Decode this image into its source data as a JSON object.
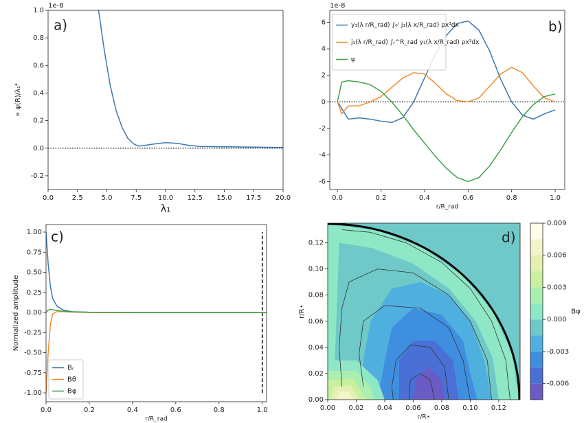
{
  "chart_data": [
    {
      "type": "line",
      "annotation": "a)",
      "offset_text": "1e-8",
      "xlabel": "λ₁",
      "ylabel": "∝ ψ(R)/λ₁⁴",
      "xlim": [
        0,
        20
      ],
      "ylim": [
        -0.3,
        1.0
      ],
      "xticks": [
        {
          "value": 0,
          "label": "0.0"
        },
        2.5,
        {
          "value": 5,
          "label": "5.0"
        },
        7.5,
        {
          "value": 10,
          "label": "10.0"
        },
        12.5,
        {
          "value": 15,
          "label": "15.0"
        },
        17.5,
        {
          "value": 20,
          "label": "20.0"
        }
      ],
      "yticks": [
        -0.2,
        {
          "value": 0,
          "label": "0.0"
        },
        0.2,
        0.4,
        0.6,
        0.8,
        {
          "value": 1,
          "label": "1.0"
        }
      ],
      "hline": 0,
      "x": [
        4.3,
        4.8,
        5.3,
        5.8,
        6.3,
        6.8,
        7.3,
        7.7,
        8.2,
        9,
        10,
        11,
        12,
        13,
        15,
        17,
        20
      ],
      "series": [
        {
          "color": "#3b78b0",
          "values": [
            1.0,
            0.7,
            0.45,
            0.27,
            0.15,
            0.07,
            0.03,
            0.015,
            0.02,
            0.03,
            0.04,
            0.035,
            0.02,
            0.012,
            0.01,
            0.008,
            0.005
          ]
        }
      ]
    },
    {
      "type": "line",
      "annotation": "b)",
      "offset_text": "1e-8",
      "xlabel": "r/R_rad",
      "legend": "upper left",
      "xlim": [
        -0.035,
        1.044
      ],
      "ylim": [
        -6.6,
        6.9
      ],
      "xticks": [
        {
          "value": 0,
          "label": "0.0"
        },
        0.2,
        0.4,
        0.6,
        0.8,
        {
          "value": 1,
          "label": "1.0"
        }
      ],
      "yticks": [
        -6,
        -4,
        -2,
        0,
        2,
        4,
        6
      ],
      "hline": 0,
      "x": [
        0,
        0.02,
        0.05,
        0.1,
        0.15,
        0.2,
        0.25,
        0.3,
        0.35,
        0.4,
        0.45,
        0.5,
        0.55,
        0.6,
        0.65,
        0.7,
        0.75,
        0.8,
        0.85,
        0.9,
        0.95,
        1.0
      ],
      "series": [
        {
          "name": "y₁(λ r/R_rad) ∫₀ʳ j₁(λ x/R_rad) ρx³dx",
          "color": "#3b78b0",
          "values": [
            0,
            -0.5,
            -1.3,
            -1.2,
            -1.3,
            -1.45,
            -1.55,
            -1.2,
            0,
            1.8,
            3.6,
            5.0,
            5.9,
            6.1,
            5.4,
            3.8,
            1.7,
            0,
            -1.0,
            -1.3,
            -0.9,
            -0.6
          ]
        },
        {
          "name": "j₁(λ r/R_rad) ∫ᵣ^R_rad y₁(λ x/R_rad) ρx³dx",
          "color": "#f08a2c",
          "values": [
            0,
            -0.9,
            -0.3,
            -0.3,
            0,
            0.4,
            1.1,
            1.8,
            2.2,
            2.1,
            1.4,
            0.6,
            0.1,
            0,
            0.3,
            1.2,
            2.1,
            2.6,
            2.2,
            1.2,
            0.3,
            0
          ]
        },
        {
          "name": "ψ",
          "color": "#3fa048",
          "values": [
            0,
            1.5,
            1.6,
            1.5,
            1.3,
            0.8,
            0,
            -1.0,
            -2.1,
            -3.1,
            -4.1,
            -5.0,
            -5.7,
            -6.0,
            -5.7,
            -4.8,
            -3.6,
            -2.3,
            -1.1,
            -0.2,
            0.4,
            0.6
          ]
        }
      ]
    },
    {
      "type": "line",
      "annotation": "c)",
      "xlabel": "r/R_rad",
      "ylabel": "Normalized amplitude",
      "legend": "lower left",
      "xlim": [
        0,
        1.02
      ],
      "ylim": [
        -1.11,
        1.094
      ],
      "xticks": [
        {
          "value": 0,
          "label": "0.0"
        },
        0.2,
        0.4,
        0.6,
        0.8,
        {
          "value": 1,
          "label": "1.0"
        }
      ],
      "yticks": [
        {
          "value": -1,
          "label": "-1.00"
        },
        -0.75,
        {
          "value": -0.5,
          "label": "-0.50"
        },
        -0.25,
        {
          "value": 0,
          "label": "0.00"
        },
        0.25,
        {
          "value": 0.5,
          "label": "0.50"
        },
        0.75,
        {
          "value": 1,
          "label": "1.00"
        }
      ],
      "vline": {
        "x": 1.0,
        "ymin": -1,
        "ymax": 1
      },
      "x": [
        0,
        0.01,
        0.02,
        0.03,
        0.05,
        0.08,
        0.12,
        0.2,
        0.4,
        1.02
      ],
      "series": [
        {
          "name": "Bᵣ",
          "color": "#3b78b0",
          "values": [
            1.0,
            0.6,
            0.33,
            0.18,
            0.08,
            0.03,
            0.01,
            0.003,
            0,
            0
          ]
        },
        {
          "name": "Bθ",
          "color": "#f08a2c",
          "values": [
            -1.0,
            -0.5,
            -0.15,
            -0.02,
            0.01,
            0.01,
            0.005,
            0,
            0,
            0
          ]
        },
        {
          "name": "Bφ",
          "color": "#3fa048",
          "values": [
            0,
            0.03,
            0.04,
            0.035,
            0.025,
            0.015,
            0.008,
            0.003,
            0,
            0
          ]
        }
      ]
    },
    {
      "type": "contour",
      "annotation": "d)",
      "xlabel": "r/R⋆",
      "ylabel": "r/R⋆",
      "colorbar_label": "Bφ",
      "xlim": [
        0,
        0.135
      ],
      "ylim": [
        0,
        0.135
      ],
      "xticks": [
        {
          "value": 0,
          "label": "0.00"
        },
        0.02,
        0.04,
        0.06,
        0.08,
        {
          "value": 0.1,
          "label": "0.10"
        },
        0.12
      ],
      "yticks": [
        {
          "value": 0,
          "label": "0.00"
        },
        0.02,
        0.04,
        0.06,
        0.08,
        {
          "value": 0.1,
          "label": "0.10"
        },
        0.12
      ],
      "levels": [
        -0.0075,
        -0.006,
        -0.0045,
        -0.003,
        -0.0015,
        0,
        0.0015,
        0.003,
        0.0045,
        0.006,
        0.0075,
        0.009
      ],
      "colors": [
        "#6a5cc4",
        "#4a70d6",
        "#3f8fe0",
        "#4fb0e0",
        "#6ec9c8",
        "#8ee8c6",
        "#aaeeb0",
        "#c8f0a0",
        "#e4f0b0",
        "#f4f4c8",
        "#fdfde8"
      ],
      "cbar_ticks": [
        -0.006,
        -0.003,
        {
          "value": 0,
          "label": "0.000"
        },
        0.003,
        0.006,
        0.009
      ],
      "boundary_radius": 0.1345,
      "regions": [
        {
          "level": -0.0015,
          "points": [
            [
              0,
              0
            ],
            [
              0.135,
              0
            ],
            [
              0.135,
              0.135
            ],
            [
              0,
              0.135
            ]
          ]
        },
        {
          "level": 0,
          "points": [
            [
              0.134,
              0
            ],
            [
              0.1294,
              0.0347
            ],
            [
              0.116,
              0.067
            ],
            [
              0.0948,
              0.0948
            ],
            [
              0.067,
              0.116
            ],
            [
              0.0347,
              0.1294
            ],
            [
              0,
              0.134
            ],
            [
              0,
              0
            ]
          ]
        },
        {
          "level": -0.0015,
          "points": [
            [
              0.12,
              0
            ],
            [
              0.116,
              0.031
            ],
            [
              0.104,
              0.06
            ],
            [
              0.085,
              0.085
            ],
            [
              0.06,
              0.104
            ],
            [
              0.031,
              0.116
            ],
            [
              0.008,
              0.12
            ],
            [
              0.005,
              0.03
            ],
            [
              0.01,
              0
            ]
          ]
        },
        {
          "level": -0.003,
          "points": [
            [
              0.02,
              0
            ],
            [
              0.025,
              0.03
            ],
            [
              0.03,
              0.06
            ],
            [
              0.045,
              0.085
            ],
            [
              0.065,
              0.09
            ],
            [
              0.085,
              0.08
            ],
            [
              0.1,
              0.06
            ],
            [
              0.11,
              0.03
            ],
            [
              0.115,
              0
            ]
          ]
        },
        {
          "level": -0.0045,
          "points": [
            [
              0.035,
              0
            ],
            [
              0.04,
              0.03
            ],
            [
              0.045,
              0.055
            ],
            [
              0.06,
              0.07
            ],
            [
              0.08,
              0.065
            ],
            [
              0.095,
              0.045
            ],
            [
              0.1,
              0.02
            ],
            [
              0.105,
              0
            ]
          ]
        },
        {
          "level": -0.006,
          "points": [
            [
              0.05,
              0
            ],
            [
              0.05,
              0.03
            ],
            [
              0.06,
              0.045
            ],
            [
              0.075,
              0.045
            ],
            [
              0.088,
              0.03
            ],
            [
              0.092,
              0
            ]
          ]
        },
        {
          "level": -0.0075,
          "points": [
            [
              0.06,
              0
            ],
            [
              0.062,
              0.015
            ],
            [
              0.07,
              0.025
            ],
            [
              0.08,
              0.015
            ],
            [
              0.082,
              0
            ]
          ]
        },
        {
          "level": 0,
          "points": [
            [
              0,
              0
            ],
            [
              0,
              0.03
            ],
            [
              0.02,
              0.03
            ],
            [
              0.035,
              0.015
            ],
            [
              0.04,
              0
            ]
          ]
        },
        {
          "level": 0.0015,
          "points": [
            [
              0,
              0
            ],
            [
              0,
              0.022
            ],
            [
              0.02,
              0.022
            ],
            [
              0.03,
              0.01
            ],
            [
              0.033,
              0
            ]
          ]
        },
        {
          "level": 0.003,
          "points": [
            [
              0,
              0
            ],
            [
              0,
              0.015
            ],
            [
              0.018,
              0.016
            ],
            [
              0.027,
              0
            ]
          ]
        },
        {
          "level": 0.0045,
          "points": [
            [
              0.002,
              0
            ],
            [
              0.004,
              0.01
            ],
            [
              0.016,
              0.011
            ],
            [
              0.022,
              0
            ]
          ]
        },
        {
          "level": 0.006,
          "points": [
            [
              0.006,
              0
            ],
            [
              0.008,
              0.006
            ],
            [
              0.015,
              0.006
            ],
            [
              0.018,
              0
            ]
          ]
        }
      ],
      "streamlines": [
        [
          [
            0.128,
            0
          ],
          [
            0.125,
            0.03
          ],
          [
            0.115,
            0.06
          ],
          [
            0.1,
            0.085
          ],
          [
            0.08,
            0.105
          ],
          [
            0.055,
            0.12
          ],
          [
            0.03,
            0.128
          ],
          [
            0.01,
            0.13
          ]
        ],
        [
          [
            0.115,
            0
          ],
          [
            0.112,
            0.03
          ],
          [
            0.1,
            0.06
          ],
          [
            0.085,
            0.08
          ],
          [
            0.06,
            0.097
          ],
          [
            0.035,
            0.1
          ],
          [
            0.015,
            0.09
          ],
          [
            0.01,
            0.07
          ],
          [
            0.008,
            0.04
          ],
          [
            0.01,
            0.01
          ]
        ],
        [
          [
            0.1,
            0
          ],
          [
            0.095,
            0.03
          ],
          [
            0.085,
            0.055
          ],
          [
            0.065,
            0.07
          ],
          [
            0.04,
            0.072
          ],
          [
            0.025,
            0.06
          ],
          [
            0.022,
            0.035
          ],
          [
            0.025,
            0.01
          ]
        ],
        [
          [
            0.085,
            0
          ],
          [
            0.082,
            0.025
          ],
          [
            0.072,
            0.04
          ],
          [
            0.058,
            0.042
          ],
          [
            0.048,
            0.03
          ],
          [
            0.045,
            0.01
          ],
          [
            0.046,
            0
          ]
        ],
        [
          [
            0.075,
            0
          ],
          [
            0.072,
            0.015
          ],
          [
            0.065,
            0.02
          ],
          [
            0.058,
            0.015
          ],
          [
            0.057,
            0
          ]
        ]
      ]
    }
  ]
}
